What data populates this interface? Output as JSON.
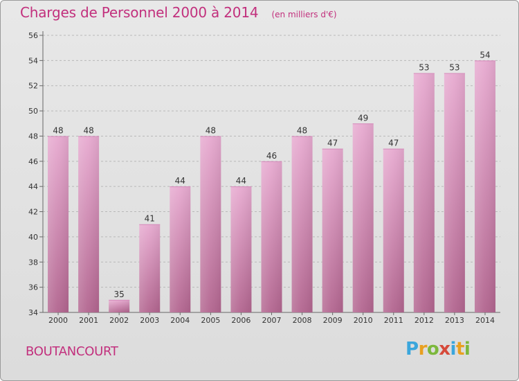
{
  "header": {
    "title": "Charges de Personnel 2000 à 2014",
    "unit": "(en milliers d'€)"
  },
  "commune": "BOUTANCOURT",
  "logo": {
    "text": "Proxiti"
  },
  "colors": {
    "title": "#c2307d",
    "bar_top": "#e7aad0",
    "bar_bottom": "#b2658f",
    "background": "#dedede"
  },
  "chart_data": {
    "type": "bar",
    "categories": [
      "2000",
      "2001",
      "2002",
      "2003",
      "2004",
      "2005",
      "2006",
      "2007",
      "2008",
      "2009",
      "2010",
      "2011",
      "2012",
      "2013",
      "2014"
    ],
    "values": [
      48,
      48,
      35,
      41,
      44,
      48,
      44,
      46,
      48,
      47,
      49,
      47,
      53,
      53,
      54
    ],
    "data_labels": [
      "48",
      "48",
      "35",
      "41",
      "44",
      "48",
      "44",
      "46",
      "48",
      "47",
      "49",
      "47",
      "53",
      "53",
      "54"
    ],
    "ylim": [
      34,
      56
    ],
    "yticks": [
      34,
      36,
      38,
      40,
      42,
      44,
      46,
      48,
      50,
      52,
      54,
      56
    ],
    "grid": "horizontal dashed",
    "legend": "none"
  }
}
